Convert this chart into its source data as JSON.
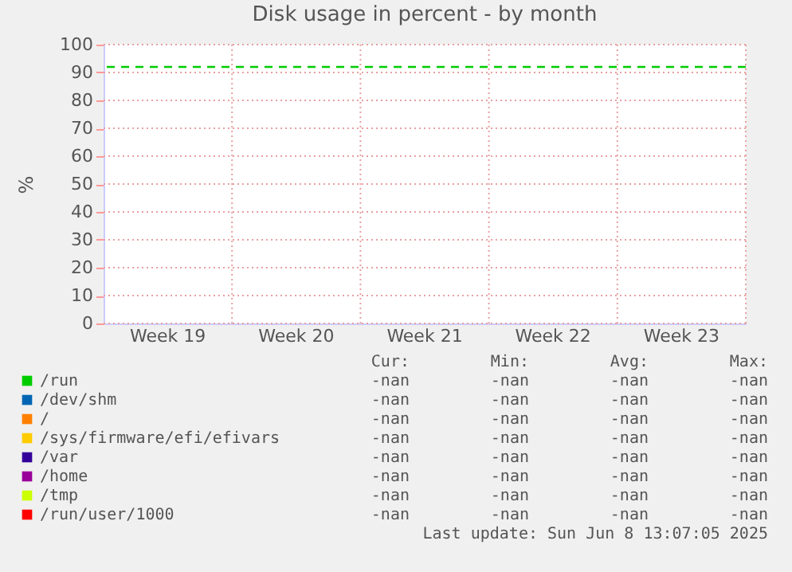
{
  "chart_data": {
    "type": "line",
    "title": "Disk usage in percent - by month",
    "ylabel": "%",
    "categories": [
      "Week 19",
      "Week 20",
      "Week 21",
      "Week 22",
      "Week 23"
    ],
    "ylim": [
      0,
      100
    ],
    "yticks": [
      0,
      10,
      20,
      30,
      40,
      50,
      60,
      70,
      80,
      90,
      100
    ],
    "grid": true,
    "legend": "bottom left",
    "series": [
      {
        "name": "/run",
        "color": "#00cc00",
        "values": [
          null,
          null,
          null,
          null,
          null
        ]
      },
      {
        "name": "/dev/shm",
        "color": "#0066b3",
        "values": [
          null,
          null,
          null,
          null,
          null
        ]
      },
      {
        "name": "/",
        "color": "#ff8000",
        "values": [
          null,
          null,
          null,
          null,
          null
        ]
      },
      {
        "name": "/sys/firmware/efi/efivars",
        "color": "#ffcc00",
        "values": [
          null,
          null,
          null,
          null,
          null
        ]
      },
      {
        "name": "/var",
        "color": "#330099",
        "values": [
          null,
          null,
          null,
          null,
          null
        ]
      },
      {
        "name": "/home",
        "color": "#990099",
        "values": [
          null,
          null,
          null,
          null,
          null
        ]
      },
      {
        "name": "/tmp",
        "color": "#ccff00",
        "values": [
          null,
          null,
          null,
          null,
          null
        ]
      },
      {
        "name": "/run/user/1000",
        "color": "#ff0000",
        "values": [
          null,
          null,
          null,
          null,
          null
        ]
      }
    ],
    "ref_lines": [
      {
        "axis": "y",
        "value": 92,
        "label": null,
        "color": "#00cc00",
        "line_style": "dashed"
      }
    ],
    "annotations": [
      "Cur:",
      "Min:",
      "Avg:",
      "Max:",
      "-nan",
      "-nan",
      "-nan",
      "-nan",
      "-nan",
      "-nan",
      "-nan",
      "-nan",
      "-nan",
      "-nan",
      "-nan",
      "-nan",
      "-nan",
      "-nan",
      "-nan",
      "-nan",
      "-nan",
      "-nan",
      "-nan",
      "-nan",
      "-nan",
      "-nan",
      "-nan",
      "-nan",
      "-nan",
      "-nan",
      "-nan",
      "-nan",
      "-nan",
      "-nan",
      "-nan",
      "-nan",
      "Last update: Sun Jun  8 13:07:05 2025"
    ]
  }
}
